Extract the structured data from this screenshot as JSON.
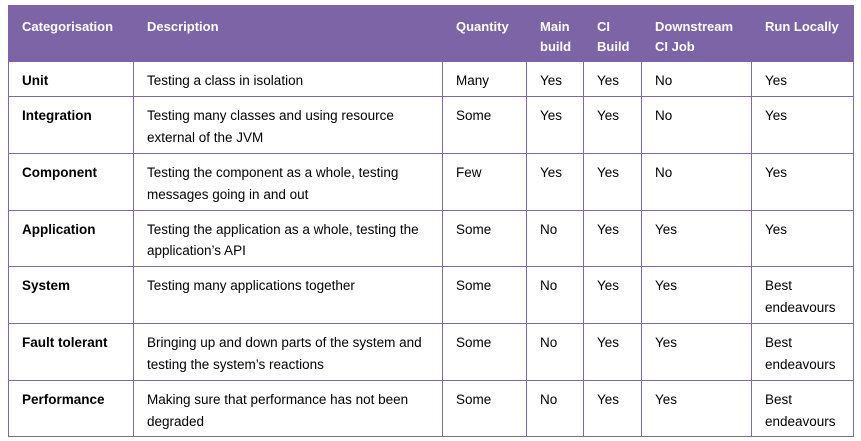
{
  "colors": {
    "header_bg": "#7D64A6",
    "header_text": "#FFFFFF",
    "border": "#8068A8",
    "body_text": "#000000",
    "page_bg": "#FFFFFF"
  },
  "table": {
    "columns": [
      "Categorisation",
      "Description",
      "Quantity",
      "Main build",
      "CI Build",
      "Downstream CI Job",
      "Run Locally"
    ],
    "rows": [
      {
        "categorisation": "Unit",
        "description": "Testing a class in isolation",
        "quantity": "Many",
        "main_build": "Yes",
        "ci_build": "Yes",
        "downstream_ci_job": "No",
        "run_locally": "Yes"
      },
      {
        "categorisation": "Integration",
        "description": "Testing many classes and using resource external of the JVM",
        "quantity": "Some",
        "main_build": "Yes",
        "ci_build": "Yes",
        "downstream_ci_job": "No",
        "run_locally": "Yes"
      },
      {
        "categorisation": "Component",
        "description": "Testing the component as a whole, testing messages going in and out",
        "quantity": "Few",
        "main_build": "Yes",
        "ci_build": "Yes",
        "downstream_ci_job": "No",
        "run_locally": "Yes"
      },
      {
        "categorisation": "Application",
        "description": "Testing the application as a whole, testing the application’s API",
        "quantity": "Some",
        "main_build": "No",
        "ci_build": "Yes",
        "downstream_ci_job": "Yes",
        "run_locally": "Yes"
      },
      {
        "categorisation": "System",
        "description": "Testing many applications together",
        "quantity": "Some",
        "main_build": "No",
        "ci_build": "Yes",
        "downstream_ci_job": "Yes",
        "run_locally": "Best endeavours"
      },
      {
        "categorisation": "Fault tolerant",
        "description": "Bringing up and down parts of the system and testing the system’s reactions",
        "quantity": "Some",
        "main_build": "No",
        "ci_build": "Yes",
        "downstream_ci_job": "Yes",
        "run_locally": "Best endeavours"
      },
      {
        "categorisation": "Performance",
        "description": "Making sure that performance has not been degraded",
        "quantity": "Some",
        "main_build": "No",
        "ci_build": "Yes",
        "downstream_ci_job": "Yes",
        "run_locally": "Best endeavours"
      }
    ]
  }
}
